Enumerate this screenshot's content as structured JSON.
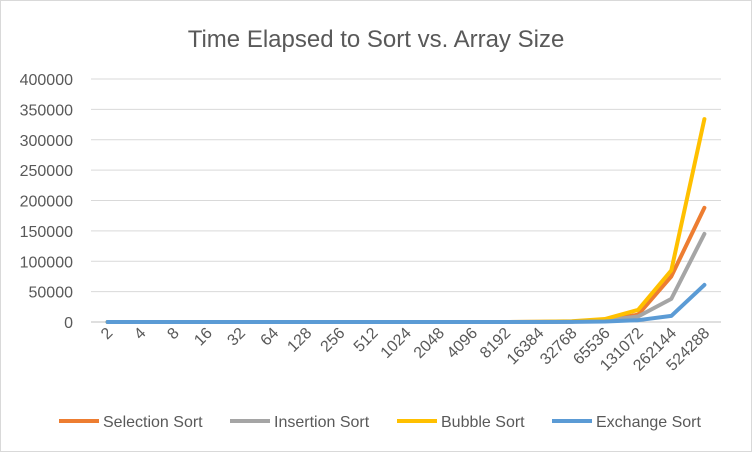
{
  "chart_data": {
    "type": "line",
    "title": "Time Elapsed to Sort vs. Array Size",
    "xlabel": "",
    "ylabel": "",
    "categories": [
      "2",
      "4",
      "8",
      "16",
      "32",
      "64",
      "128",
      "256",
      "512",
      "1024",
      "2048",
      "4096",
      "8192",
      "16384",
      "32768",
      "65536",
      "131072",
      "262144",
      "524288"
    ],
    "ylim": [
      0,
      400000
    ],
    "yticks": [
      0,
      50000,
      100000,
      150000,
      200000,
      250000,
      300000,
      350000,
      400000
    ],
    "ytick_labels": [
      "0",
      "50000",
      "100000",
      "150000",
      "200000",
      "250000",
      "300000",
      "350000",
      "400000"
    ],
    "grid": true,
    "legend_position": "bottom",
    "series": [
      {
        "name": "Selection Sort",
        "color": "#ed7d31",
        "values": [
          0,
          0,
          0,
          0,
          0,
          0,
          0,
          0,
          0,
          0,
          0,
          0,
          0,
          200,
          700,
          3000,
          12000,
          75000,
          188000
        ]
      },
      {
        "name": "Insertion Sort",
        "color": "#a5a5a5",
        "values": [
          0,
          0,
          0,
          0,
          0,
          0,
          0,
          0,
          0,
          0,
          0,
          0,
          0,
          150,
          600,
          2500,
          9000,
          38000,
          145000
        ]
      },
      {
        "name": "Bubble Sort",
        "color": "#ffc000",
        "values": [
          0,
          0,
          0,
          0,
          0,
          0,
          0,
          0,
          0,
          0,
          0,
          0,
          0,
          300,
          1200,
          5000,
          20000,
          85000,
          334000
        ]
      },
      {
        "name": "Exchange Sort",
        "color": "#5b9bd5",
        "values": [
          0,
          0,
          0,
          0,
          0,
          0,
          0,
          0,
          0,
          0,
          0,
          0,
          0,
          50,
          200,
          800,
          3000,
          10000,
          61000
        ]
      }
    ]
  }
}
